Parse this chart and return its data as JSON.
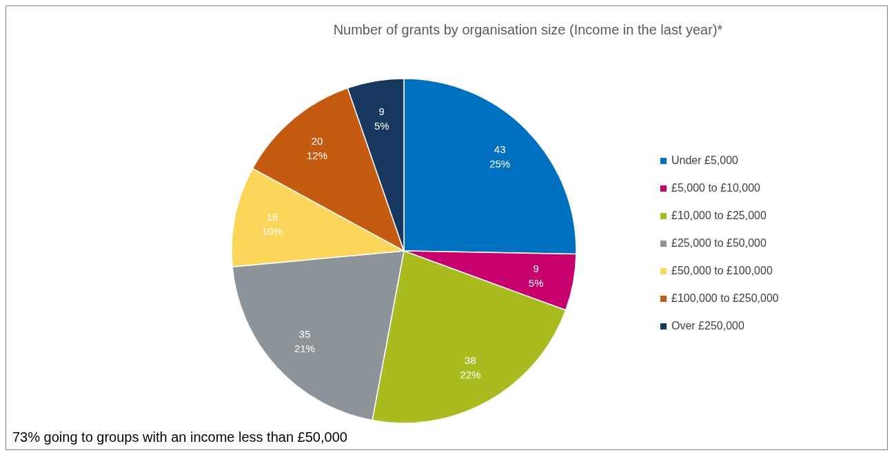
{
  "chart_data": {
    "type": "pie",
    "title": "Number of grants by organisation size (Income in the last year)*",
    "categories": [
      "Under £5,000",
      "£5,000 to £10,000",
      "£10,000 to £25,000",
      "£25,000 to £50,000",
      "£50,000 to £100,000",
      "£100,000 to £250,000",
      "Over £250,000"
    ],
    "values": [
      43,
      9,
      38,
      35,
      16,
      20,
      9
    ],
    "colors": [
      "#0070c0",
      "#c8006e",
      "#a9bb1f",
      "#8c9399",
      "#fcd55b",
      "#c55a11",
      "#17375e"
    ],
    "value_labels": [
      "43\n25%",
      "9\n5%",
      "38\n22%",
      "35\n21%",
      "16\n10%",
      "20\n12%",
      "9\n5%"
    ],
    "legend": "right",
    "annotations": [
      "73% going to groups with an income less than £50,000"
    ]
  }
}
